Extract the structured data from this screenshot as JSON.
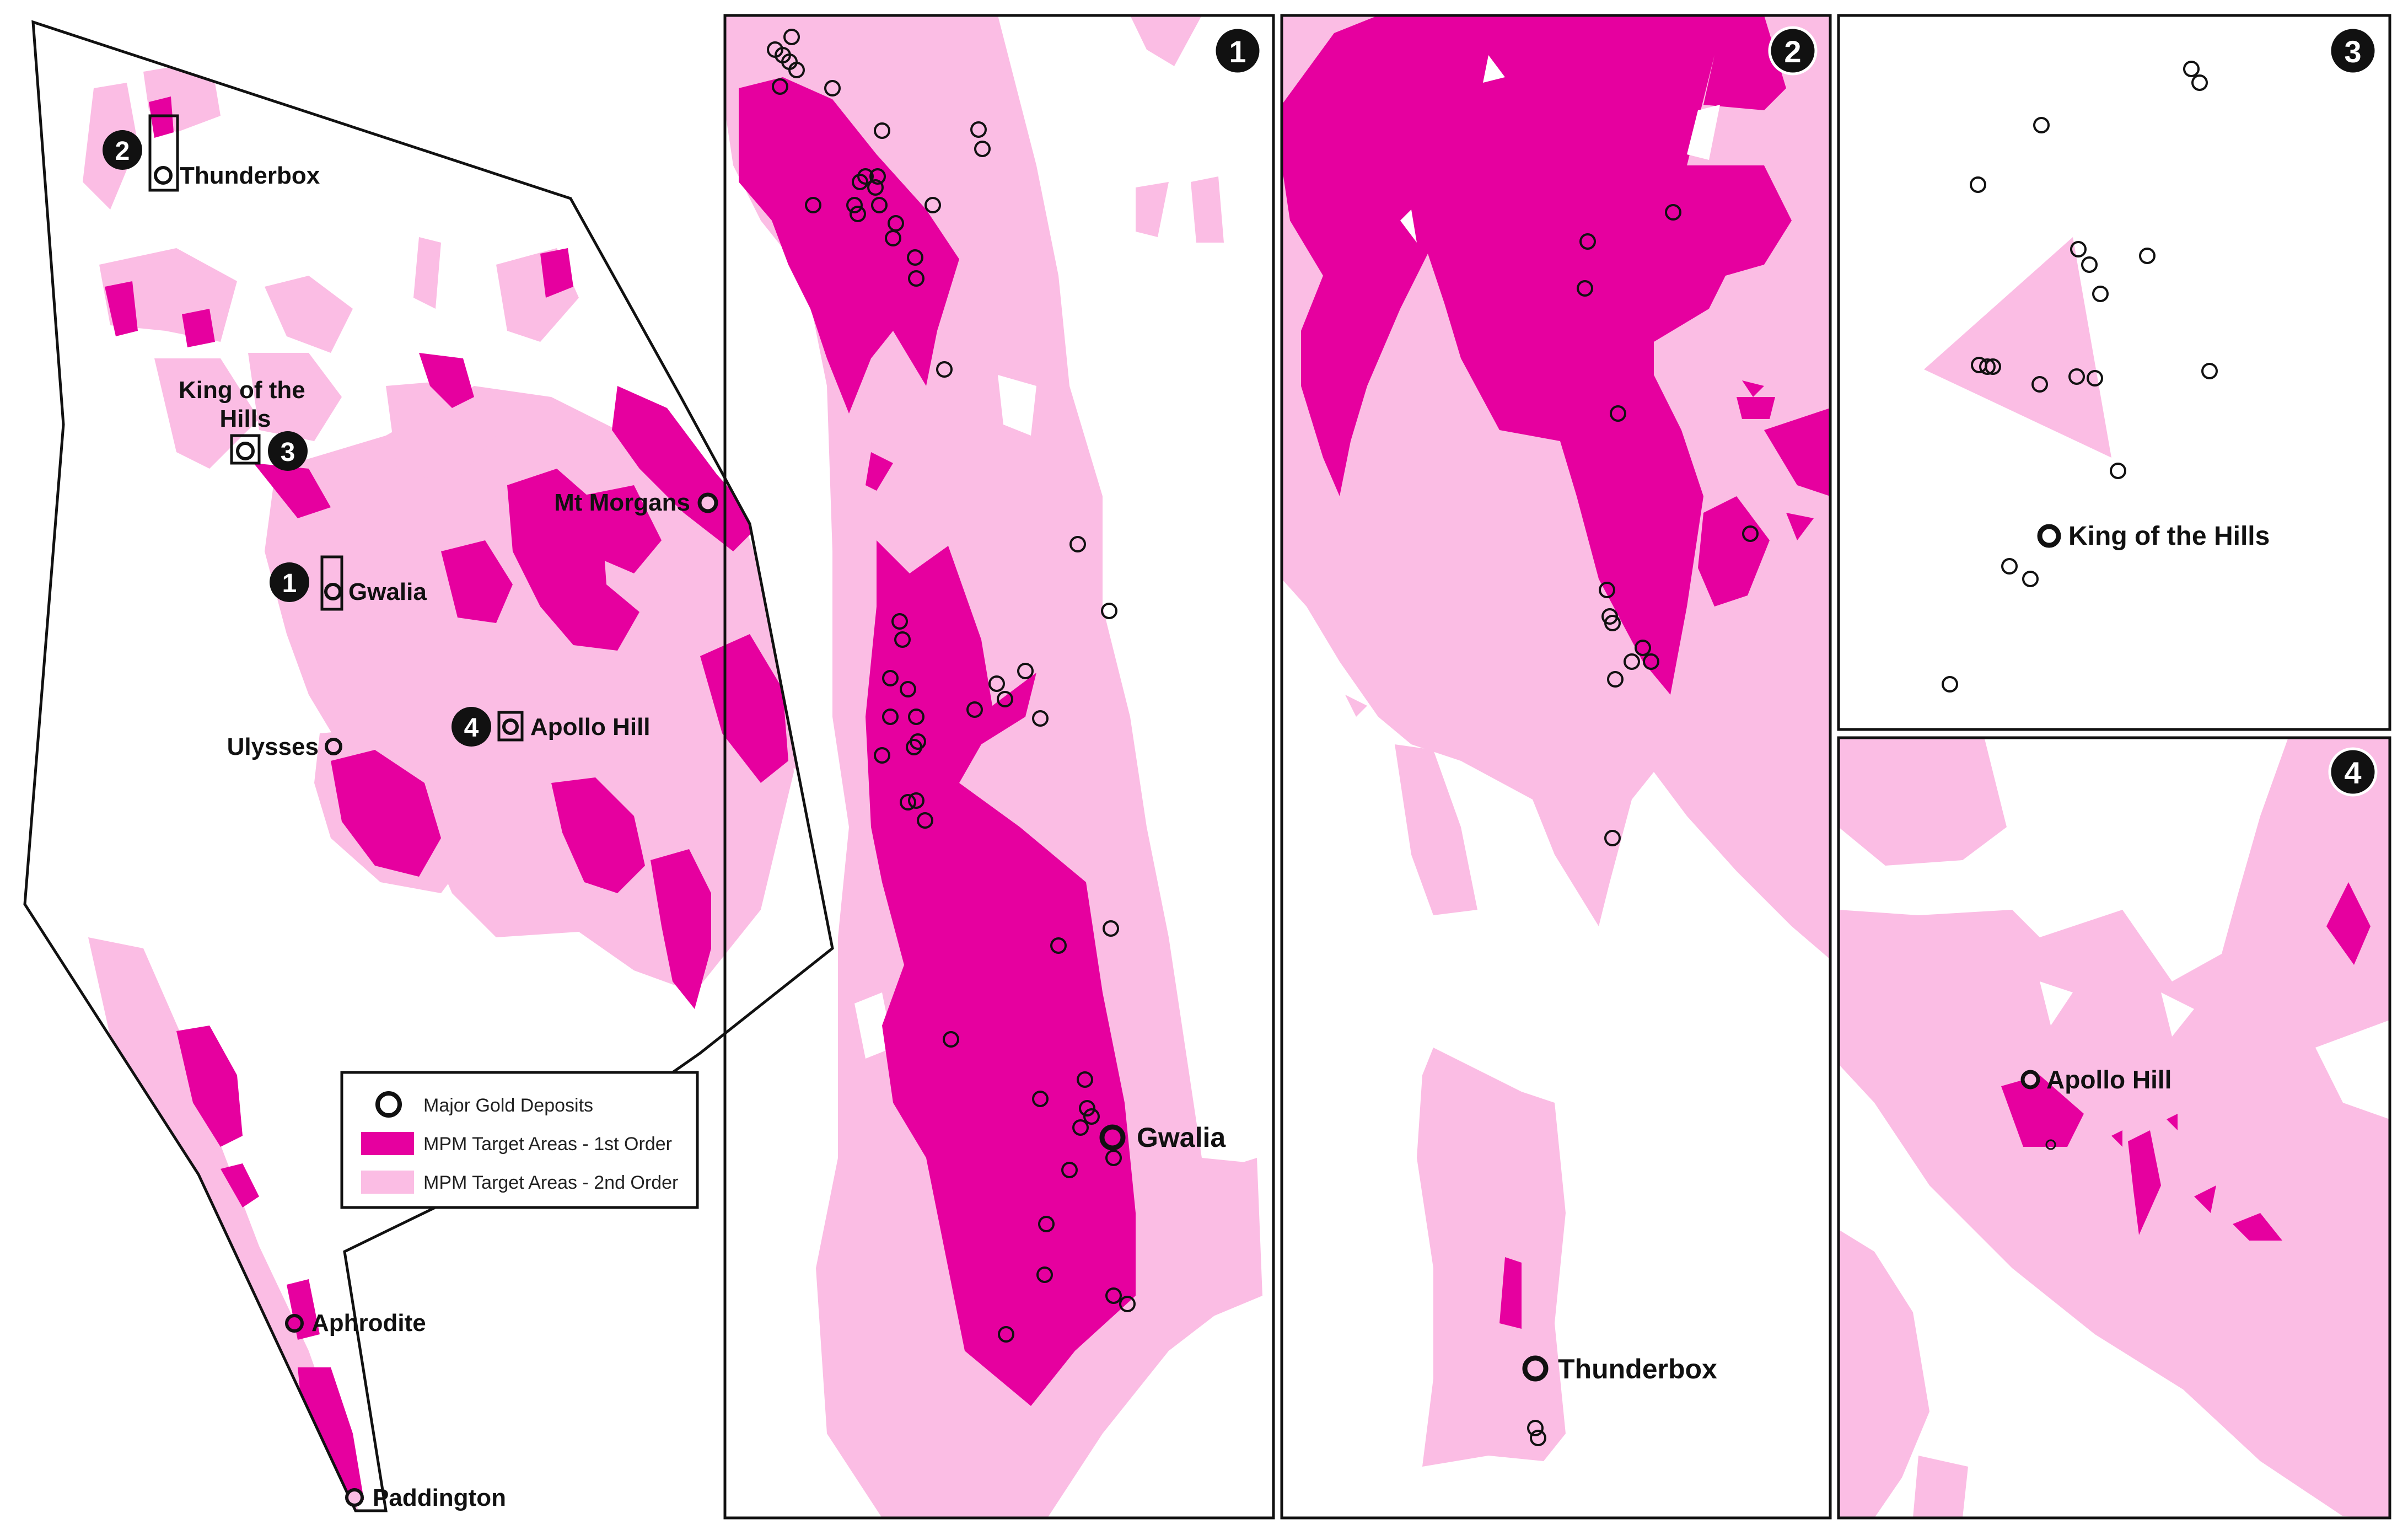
{
  "colors": {
    "first_order": "#e6009f",
    "second_order": "#fbbde4",
    "outline": "#111111",
    "background": "#ffffff"
  },
  "overview": {
    "deposits": [
      {
        "name": "Thunderbox"
      },
      {
        "name": "King of the\nHills"
      },
      {
        "name": "Mt Morgans"
      },
      {
        "name": "Gwalia"
      },
      {
        "name": "Ulysses"
      },
      {
        "name": "Apollo Hill"
      },
      {
        "name": "Aphrodite"
      },
      {
        "name": "Paddington"
      }
    ],
    "inset_badges": [
      "1",
      "2",
      "3",
      "4"
    ]
  },
  "legend": {
    "items": [
      {
        "label": "Major Gold Deposits",
        "symbol": "circle-icon"
      },
      {
        "label": "MPM Target Areas - 1st Order",
        "symbol": "first-order-swatch"
      },
      {
        "label": "MPM Target Areas - 2nd Order",
        "symbol": "second-order-swatch"
      }
    ]
  },
  "panels": [
    {
      "number": "1",
      "deposit_label": "Gwalia"
    },
    {
      "number": "2",
      "deposit_label": "Thunderbox"
    },
    {
      "number": "3",
      "deposit_label": "King of the Hills"
    },
    {
      "number": "4",
      "deposit_label": "Apollo Hill"
    }
  ]
}
